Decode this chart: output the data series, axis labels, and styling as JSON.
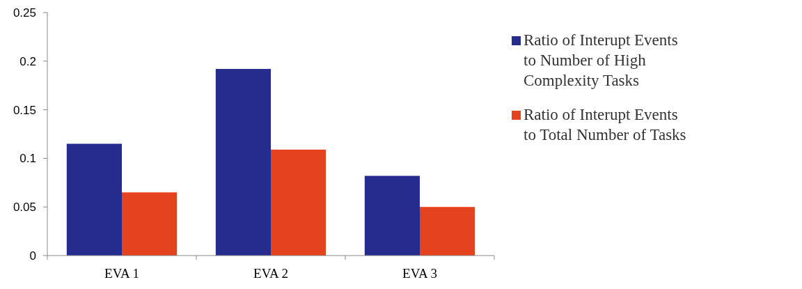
{
  "chart_data": {
    "type": "bar",
    "categories": [
      "EVA 1",
      "EVA 2",
      "EVA 3"
    ],
    "series": [
      {
        "name": "Ratio of Interupt Events to Number of High Complexity Tasks",
        "color": "#262c8e",
        "values": [
          0.115,
          0.192,
          0.082
        ]
      },
      {
        "name": "Ratio of Interupt Events to Total Number of Tasks",
        "color": "#e5431f",
        "values": [
          0.065,
          0.109,
          0.05
        ]
      }
    ],
    "ylim": [
      0,
      0.25
    ],
    "yticks": [
      {
        "value": 0,
        "label": "0"
      },
      0.05,
      {
        "value": 0.1,
        "label": "0.1"
      },
      0.15,
      {
        "value": 0.2,
        "label": "0.2"
      },
      0.25
    ],
    "grid": false,
    "legend": "right"
  }
}
